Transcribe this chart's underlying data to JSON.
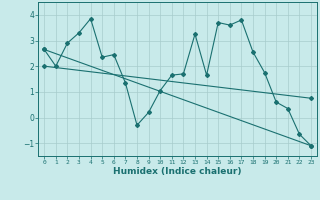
{
  "xlabel": "Humidex (Indice chaleur)",
  "bg_color": "#c8eaea",
  "line_color": "#1a7070",
  "grid_color": "#a8cccc",
  "xlim": [
    -0.5,
    23.5
  ],
  "ylim": [
    -1.5,
    4.5
  ],
  "xticks": [
    0,
    1,
    2,
    3,
    4,
    5,
    6,
    7,
    8,
    9,
    10,
    11,
    12,
    13,
    14,
    15,
    16,
    17,
    18,
    19,
    20,
    21,
    22,
    23
  ],
  "yticks": [
    -1,
    0,
    1,
    2,
    3,
    4
  ],
  "line1_x": [
    0,
    1,
    2,
    3,
    4,
    5,
    6,
    7,
    8,
    9,
    10,
    11,
    12,
    13,
    14,
    15,
    16,
    17,
    18,
    19,
    20,
    21,
    22,
    23
  ],
  "line1_y": [
    2.65,
    2.0,
    2.9,
    3.3,
    3.85,
    2.35,
    2.45,
    1.35,
    -0.3,
    0.2,
    1.05,
    1.65,
    1.7,
    3.25,
    1.65,
    3.7,
    3.6,
    3.8,
    2.55,
    1.75,
    0.6,
    0.35,
    -0.65,
    -1.1
  ],
  "line2_x": [
    0,
    23
  ],
  "line2_y": [
    2.65,
    -1.1
  ],
  "line3_x": [
    0,
    23
  ],
  "line3_y": [
    2.0,
    0.75
  ]
}
